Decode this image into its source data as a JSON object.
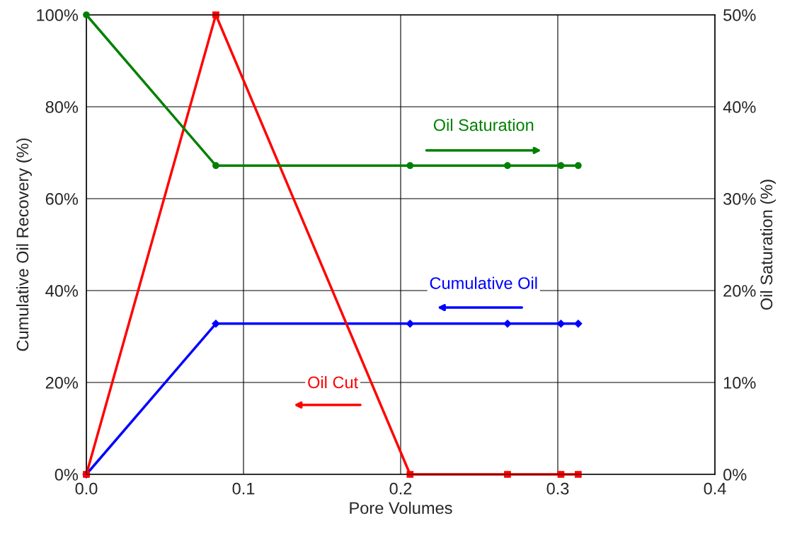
{
  "chart_data": {
    "type": "line",
    "xlabel": "Pore Volumes",
    "ylabel": "Cumulative Oil Recovery (%)",
    "y2label": "Oil Saturation (%)",
    "x": [
      0.0,
      0.0824,
      0.206,
      0.268,
      0.302,
      0.313
    ],
    "series": [
      {
        "color": "#008000",
        "values": [
          50,
          33.6,
          33.6,
          33.6,
          33.6,
          33.6
        ],
        "axis": "y2",
        "marker": "circle"
      },
      {
        "color": "#0000ff",
        "values": [
          0,
          32.8,
          32.8,
          32.8,
          32.8,
          32.8
        ],
        "marker": "diamond"
      },
      {
        "color": "#ff0000",
        "values": [
          0,
          100,
          0,
          0,
          0,
          0
        ],
        "marker": "square"
      }
    ],
    "annotations": [
      "Oil Saturation",
      "Cumulative Oil",
      "Oil Cut"
    ],
    "xlim": [
      0,
      0.4
    ],
    "xticks": [
      {
        "value": 0,
        "label": "0.0"
      },
      0.1,
      0.2,
      0.3,
      0.4
    ],
    "ylim": [
      0,
      100
    ],
    "yticks": [
      {
        "value": 0,
        "label": "0%"
      },
      {
        "value": 20,
        "label": "20%"
      },
      {
        "value": 40,
        "label": "40%"
      },
      {
        "value": 60,
        "label": "60%"
      },
      {
        "value": 80,
        "label": "80%"
      },
      {
        "value": 100,
        "label": "100%"
      }
    ],
    "y2lim": [
      0,
      50
    ],
    "y2ticks": [
      {
        "value": 0,
        "label": "0%"
      },
      {
        "value": 10,
        "label": "10%"
      },
      {
        "value": 20,
        "label": "20%"
      },
      {
        "value": 30,
        "label": "30%"
      },
      {
        "value": 40,
        "label": "40%"
      },
      {
        "value": 50,
        "label": "50%"
      }
    ],
    "grid": true,
    "legend": false
  }
}
